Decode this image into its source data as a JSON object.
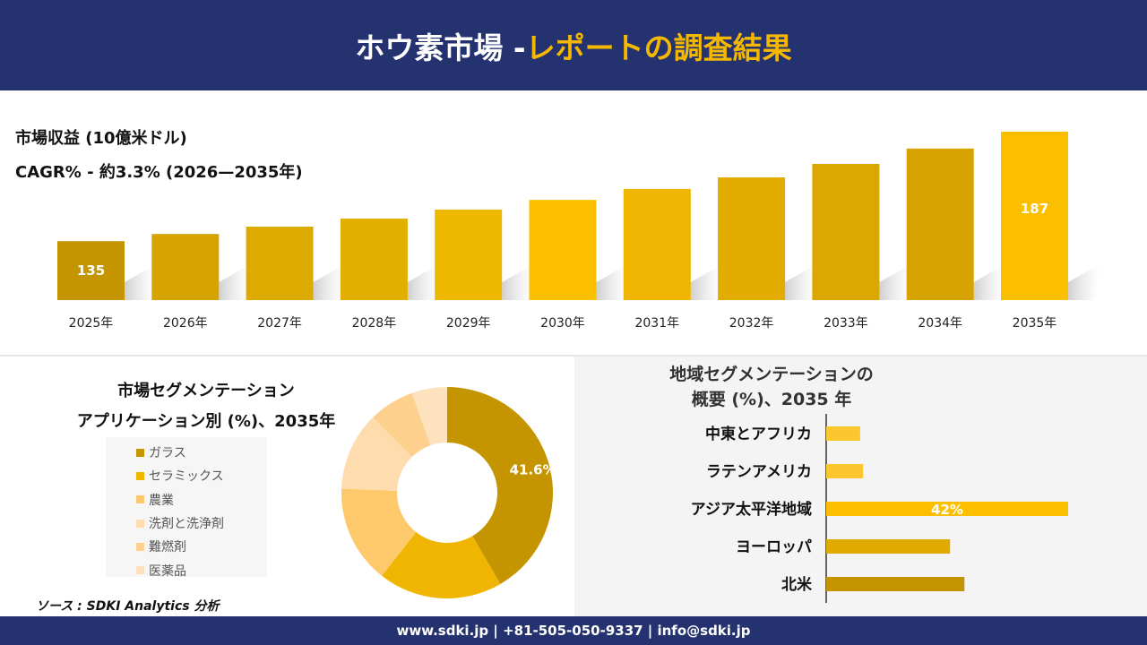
{
  "header": {
    "title_main": "ホウ素市場 -",
    "title_accent": "レポートの調査結果"
  },
  "colors": {
    "navy": "#243270",
    "accent": "#f5b800"
  },
  "chart_data": [
    {
      "type": "bar",
      "title": "市場収益 (10億米ドル)",
      "subtitle": "CAGR% - 約3.3% (2026—2035年)",
      "categories": [
        "2025年",
        "2026年",
        "2027年",
        "2028年",
        "2029年",
        "2030年",
        "2031年",
        "2032年",
        "2033年",
        "2034年",
        "2035年"
      ],
      "values": [
        135,
        138.4,
        141.9,
        145.7,
        150,
        154.6,
        159.8,
        165.3,
        171.7,
        179,
        187
      ],
      "data_labels": {
        "0": "135",
        "10": "187"
      },
      "ylim": [
        107,
        190
      ],
      "grid": false,
      "colors": [
        "#c49500",
        "#d6a300",
        "#dcaa00",
        "#e2ae00",
        "#efb800",
        "#fbbf00",
        "#efb500",
        "#e2ac00",
        "#dba700",
        "#d6a300",
        "#fbbf00"
      ]
    },
    {
      "type": "pie",
      "donut": true,
      "title": "市場セグメンテーション アプリケーション別 (%)、2035年",
      "title_lines": [
        "市場セグメンテーション",
        "アプリケーション別 (%)、2035年"
      ],
      "categories": [
        "ガラス",
        "セラミックス",
        "農業",
        "洗剤と洗浄剤",
        "難燃剤",
        "医薬品"
      ],
      "values": [
        41.6,
        19,
        15,
        12,
        7,
        5.4
      ],
      "data_labels": {
        "0": "41.6%"
      },
      "colors": [
        "#c49500",
        "#f0b500",
        "#fdc96a",
        "#fedcae",
        "#fdd08e",
        "#fde2bd"
      ],
      "legend": "left"
    },
    {
      "type": "bar",
      "orientation": "horizontal",
      "title_lines": [
        "地域セグメンテーションの",
        "概要 (%)、2035 年"
      ],
      "categories": [
        "中東とアフリカ",
        "ラテンアメリカ",
        "アジア太平洋地域",
        "ヨーロッパ",
        "北米"
      ],
      "values": [
        5.9,
        6.4,
        42,
        21.5,
        24
      ],
      "data_labels": {
        "2": "42%"
      },
      "colors": [
        "#fcc62e",
        "#fcc62e",
        "#fcbf00",
        "#e0aa00",
        "#c49300"
      ]
    }
  ],
  "source": "ソース : SDKI Analytics 分析",
  "footer": "www.sdki.jp | +81-505-050-9337 | info@sdki.jp"
}
